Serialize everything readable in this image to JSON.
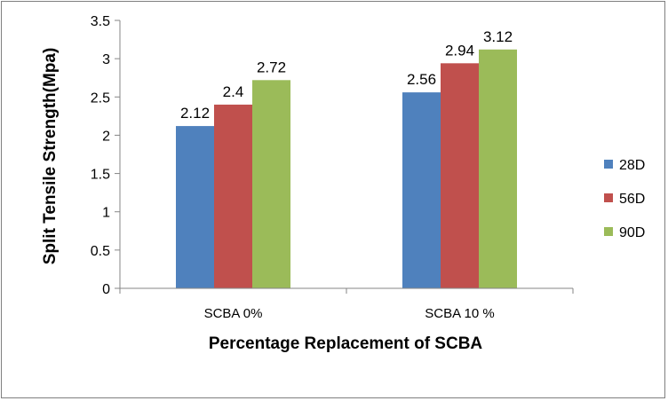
{
  "chart_data": {
    "type": "bar",
    "title": "",
    "categories": [
      "SCBA 0%",
      "SCBA 10 %"
    ],
    "series": [
      {
        "name": "28D",
        "color": "#4f81bd",
        "values": [
          2.12,
          2.56
        ]
      },
      {
        "name": "56D",
        "color": "#c0504d",
        "values": [
          2.4,
          2.94
        ]
      },
      {
        "name": "90D",
        "color": "#9bbb59",
        "values": [
          2.72,
          3.12
        ]
      }
    ],
    "xlabel": "Percentage Replacement  of SCBA",
    "ylabel": "Split Tensile  Strength(Mpa)",
    "ylim": [
      0,
      3.5
    ],
    "yticks": [
      "0",
      "0.5",
      "1",
      "1.5",
      "2",
      "2.5",
      "3",
      "3.5"
    ],
    "data_labels": [
      [
        "2.12",
        "2.56"
      ],
      [
        "2.4",
        "2.94"
      ],
      [
        "2.72",
        "3.12"
      ]
    ],
    "grid": false,
    "legend": "right"
  }
}
